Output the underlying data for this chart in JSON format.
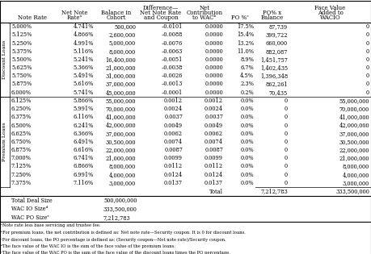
{
  "columns": [
    "Note Rate",
    "Net Note\nRateᵃ",
    "Balance in\nCohort",
    "Difference—\nNet Note Rate\nand Coupon",
    "Net\nContribution\nto WACᵇ",
    "PO %ᶜ",
    "PO% x\nBalance",
    "Face Value\nAdded to\nWACIO"
  ],
  "discount_rows": [
    [
      "5.000%",
      "4.741%",
      "500,000",
      "–0.0101",
      "0.0000",
      "17.5%",
      "87,739",
      "0"
    ],
    [
      "5.125%",
      "4.866%",
      "2,600,000",
      "–0.0088",
      "0.0000",
      "15.4%",
      "399,722",
      "0"
    ],
    [
      "5.250%",
      "4.991%",
      "5,000,000",
      "–0.0076",
      "0.0000",
      "13.2%",
      "660,000",
      "0"
    ],
    [
      "5.375%",
      "5.116%",
      "8,000,000",
      "–0.0063",
      "0.0000",
      "11.0%",
      "882,087",
      "0"
    ],
    [
      "5.500%",
      "5.241%",
      "16,400,000",
      "–0.0051",
      "0.0000",
      "8.9%",
      "1,451,757",
      "0"
    ],
    [
      "5.625%",
      "5.366%",
      "21,000,000",
      "–0.0038",
      "0.0000",
      "6.7%",
      "1,402,435",
      "0"
    ],
    [
      "5.750%",
      "5.491%",
      "31,000,000",
      "–0.0026",
      "0.0000",
      "4.5%",
      "1,396,348",
      "0"
    ],
    [
      "5.875%",
      "5.616%",
      "37,000,000",
      "–0.0013",
      "0.0000",
      "2.3%",
      "862,261",
      "0"
    ],
    [
      "6.000%",
      "5.741%",
      "45,000,000",
      "–0.0001",
      "0.0000",
      "0.2%",
      "70,435",
      "0"
    ]
  ],
  "premium_rows": [
    [
      "6.125%",
      "5.866%",
      "55,000,000",
      "0.0012",
      "0.0012",
      "0.0%",
      "0",
      "55,000,000"
    ],
    [
      "6.250%",
      "5.991%",
      "70,000,000",
      "0.0024",
      "0.0024",
      "0.0%",
      "0",
      "70,000,000"
    ],
    [
      "6.375%",
      "6.116%",
      "41,000,000",
      "0.0037",
      "0.0037",
      "0.0%",
      "0",
      "41,000,000"
    ],
    [
      "6.500%",
      "6.241%",
      "42,000,000",
      "0.0049",
      "0.0049",
      "0.0%",
      "0",
      "42,000,000"
    ],
    [
      "6.625%",
      "6.366%",
      "37,000,000",
      "0.0062",
      "0.0062",
      "0.0%",
      "0",
      "37,000,000"
    ],
    [
      "6.750%",
      "6.491%",
      "30,500,000",
      "0.0074",
      "0.0074",
      "0.0%",
      "0",
      "30,500,000"
    ],
    [
      "6.875%",
      "6.616%",
      "22,000,000",
      "0.0087",
      "0.0087",
      "0.0%",
      "0",
      "22,000,000"
    ],
    [
      "7.000%",
      "6.741%",
      "21,000,000",
      "0.0099",
      "0.0099",
      "0.0%",
      "0",
      "21,000,000"
    ],
    [
      "7.125%",
      "6.866%",
      "8,000,000",
      "0.0112",
      "0.0112",
      "0.0%",
      "0",
      "8,000,000"
    ],
    [
      "7.250%",
      "6.991%",
      "4,000,000",
      "0.0124",
      "0.0124",
      "0.0%",
      "0",
      "4,000,000"
    ],
    [
      "7.375%",
      "7.116%",
      "3,000,000",
      "0.0137",
      "0.0137",
      "0.0%",
      "0",
      "3,000,000"
    ]
  ],
  "summary": [
    [
      "Total Deal Size",
      "500,000,000"
    ],
    [
      "WAC IO Sizeᵈ",
      "333,500,000"
    ],
    [
      "WAC PO Sizeᵉ",
      "7,212,783"
    ]
  ],
  "footnotes": [
    "ᵃNote rate less base servicing and trustee fee.",
    "ᵇFor premium loans, the net contribution is defined as: Net note rate—Security coupon. It is 0 for discount loans.",
    "ᶜFor discount loans, the PO percentage is defined as: (Security coupon—Net note rate)/Security coupon.",
    "ᵈThe face value of the WAC IO is the sum of the face value of the premium loans.",
    "ᵉThe face value of the WAC PO is the sum of the face value of the discount loans times the PO percentage."
  ],
  "total_po_x_balance": "7,212,783",
  "total_fv": "333,500,000"
}
